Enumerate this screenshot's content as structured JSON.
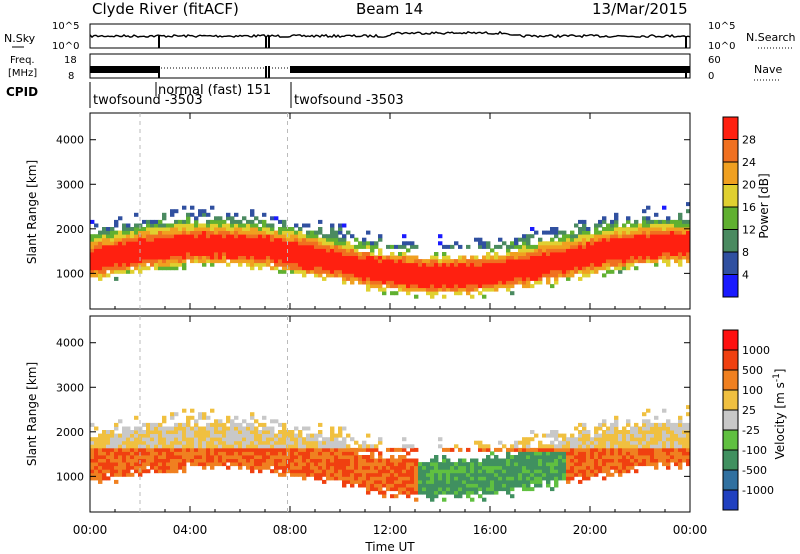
{
  "header": {
    "station": "Clyde River (fitACF)",
    "beam": "Beam 14",
    "date": "13/Mar/2015"
  },
  "noise_panel": {
    "left_label": "N.Sky",
    "right_label": "N.Search",
    "ticks_left": [
      "10^5",
      "10^0"
    ],
    "ticks_right": [
      "10^5",
      "10^0"
    ]
  },
  "freq_panel": {
    "left_label_1": "Freq.",
    "left_label_2": "[MHz]",
    "ticks_left": [
      "18",
      "8"
    ],
    "right_label": "Nave",
    "ticks_right": [
      "60",
      "0"
    ]
  },
  "cpid": {
    "label": "CPID",
    "segments": [
      "twofsound -3503",
      "normal (fast) 151",
      "twofsound -3503"
    ]
  },
  "chart_data": [
    {
      "type": "heatmap",
      "name": "power",
      "ylabel": "Slant Range [km]",
      "xlabel": "Time UT",
      "xticks": [
        "00:00",
        "04:00",
        "08:00",
        "12:00",
        "16:00",
        "20:00",
        "00:00"
      ],
      "yticks": [
        1000,
        2000,
        3000,
        4000
      ],
      "ylim": [
        200,
        4600
      ],
      "xlim_hours": [
        0,
        24
      ],
      "colorbar": {
        "label": "Power [dB]",
        "ticks": [
          4,
          8,
          12,
          16,
          20,
          24,
          28
        ],
        "colors": [
          "#1a1aff",
          "#3050a0",
          "#4a8a60",
          "#60b030",
          "#e0d030",
          "#f0a020",
          "#f07020",
          "#ff2010"
        ]
      }
    },
    {
      "type": "heatmap",
      "name": "velocity",
      "ylabel": "Slant Range [km]",
      "xlabel": "Time UT",
      "xticks": [
        "00:00",
        "04:00",
        "08:00",
        "12:00",
        "16:00",
        "20:00",
        "00:00"
      ],
      "yticks": [
        1000,
        2000,
        3000,
        4000
      ],
      "ylim": [
        200,
        4600
      ],
      "xlim_hours": [
        0,
        24
      ],
      "colorbar": {
        "label": "Velocity [m s^-1]",
        "ticks": [
          1000,
          500,
          100,
          25,
          -25,
          -100,
          -500,
          -1000
        ],
        "colors": [
          "#2040c0",
          "#3070a0",
          "#409060",
          "#60c040",
          "#c8c8c8",
          "#f0c040",
          "#f08020",
          "#f04010",
          "#ff1010"
        ]
      }
    }
  ]
}
